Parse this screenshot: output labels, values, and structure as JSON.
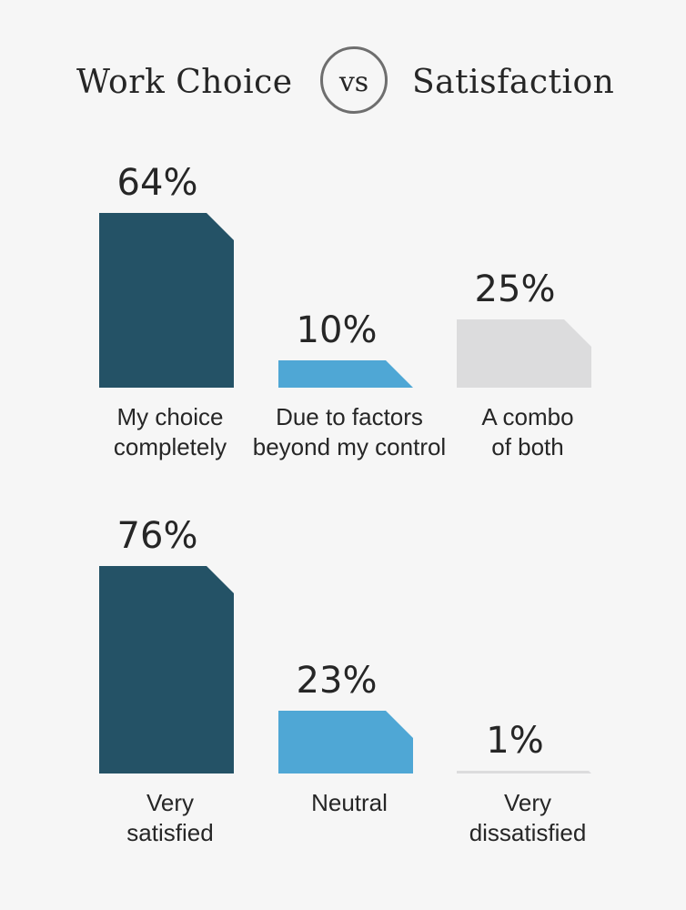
{
  "header": {
    "title_left": "Work Choice",
    "vs": "vs",
    "title_right": "Satisfaction"
  },
  "colors": {
    "dark": "#245266",
    "blue": "#4fa7d5",
    "gray": "#dcdcdd"
  },
  "chart_data": [
    {
      "type": "bar",
      "title": "Work Choice",
      "categories": [
        [
          "My choice",
          "completely"
        ],
        [
          "Due to factors",
          "beyond my control"
        ],
        [
          "A combo",
          "of both"
        ]
      ],
      "values": [
        64,
        10,
        25
      ],
      "value_labels": [
        "64%",
        "10%",
        "25%"
      ],
      "bar_colors": [
        "#245266",
        "#4fa7d5",
        "#dcdcdd"
      ]
    },
    {
      "type": "bar",
      "title": "Satisfaction",
      "categories": [
        [
          "Very",
          "satisfied"
        ],
        [
          "Neutral"
        ],
        [
          "Very",
          "dissatisfied"
        ]
      ],
      "values": [
        76,
        23,
        1
      ],
      "value_labels": [
        "76%",
        "23%",
        "1%"
      ],
      "bar_colors": [
        "#245266",
        "#4fa7d5",
        "#dcdcdd"
      ]
    }
  ]
}
